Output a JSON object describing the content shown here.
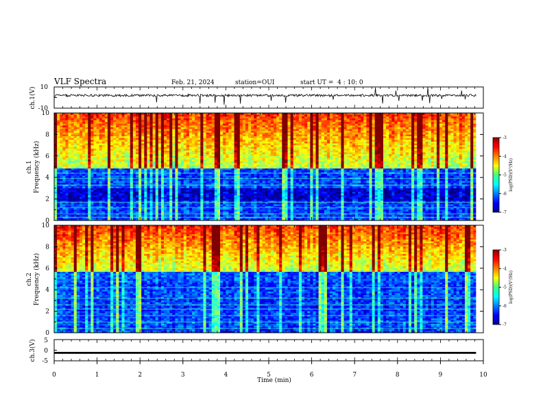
{
  "header": {
    "title": "VLF Spectra",
    "date": "Feb. 21, 2024",
    "station": "station=OUI",
    "start": "start UT =  4 : 10: 0"
  },
  "chart_data": [
    {
      "id": "ch1-waveform",
      "type": "line",
      "ylabel": "ch.1(V)",
      "yticks": [
        10,
        -10
      ],
      "ylim": [
        -10,
        10
      ],
      "xlim": [
        0,
        10
      ],
      "note": "noisy waveform near +2 V with spikes"
    },
    {
      "id": "ch1-spectrogram",
      "type": "heatmap",
      "ylabel_line1": "ch.1",
      "ylabel_line2": "Frequency (kHz)",
      "yticks": [
        0,
        2,
        4,
        6,
        8,
        10
      ],
      "ylim": [
        0,
        10
      ],
      "xlim": [
        0,
        9.83
      ],
      "colorbar": {
        "label": "log(PSD)(V²/Hz)",
        "ticks": [
          -3,
          -4,
          -5,
          -6,
          -7
        ],
        "range": [
          -7,
          -3
        ],
        "colormap": "jet"
      }
    },
    {
      "id": "ch2-spectrogram",
      "type": "heatmap",
      "ylabel_line1": "ch.2",
      "ylabel_line2": "Frequency (kHz)",
      "yticks": [
        0,
        2,
        4,
        6,
        8,
        10
      ],
      "ylim": [
        0,
        10
      ],
      "xlim": [
        0,
        9.83
      ],
      "colorbar": {
        "label": "log(PSD)(V²/Hz)",
        "ticks": [
          -3,
          -4,
          -5,
          -6,
          -7
        ],
        "range": [
          -7,
          -3
        ],
        "colormap": "jet"
      }
    },
    {
      "id": "ch3-waveform",
      "type": "line",
      "ylabel": "ch.3(V)",
      "yticks": [
        5,
        0,
        -5
      ],
      "ylim": [
        -5,
        5
      ],
      "xlim": [
        0,
        10
      ],
      "note": "constant trace near -1.2 V"
    }
  ],
  "xaxis": {
    "label": "Time (min)",
    "ticks": [
      0,
      1,
      2,
      3,
      4,
      5,
      6,
      7,
      8,
      9,
      10
    ],
    "range": [
      0,
      10
    ]
  },
  "colors": {
    "jet_low": "#00008f",
    "jet_mid": "#00ff80",
    "jet_high": "#8f0000"
  }
}
